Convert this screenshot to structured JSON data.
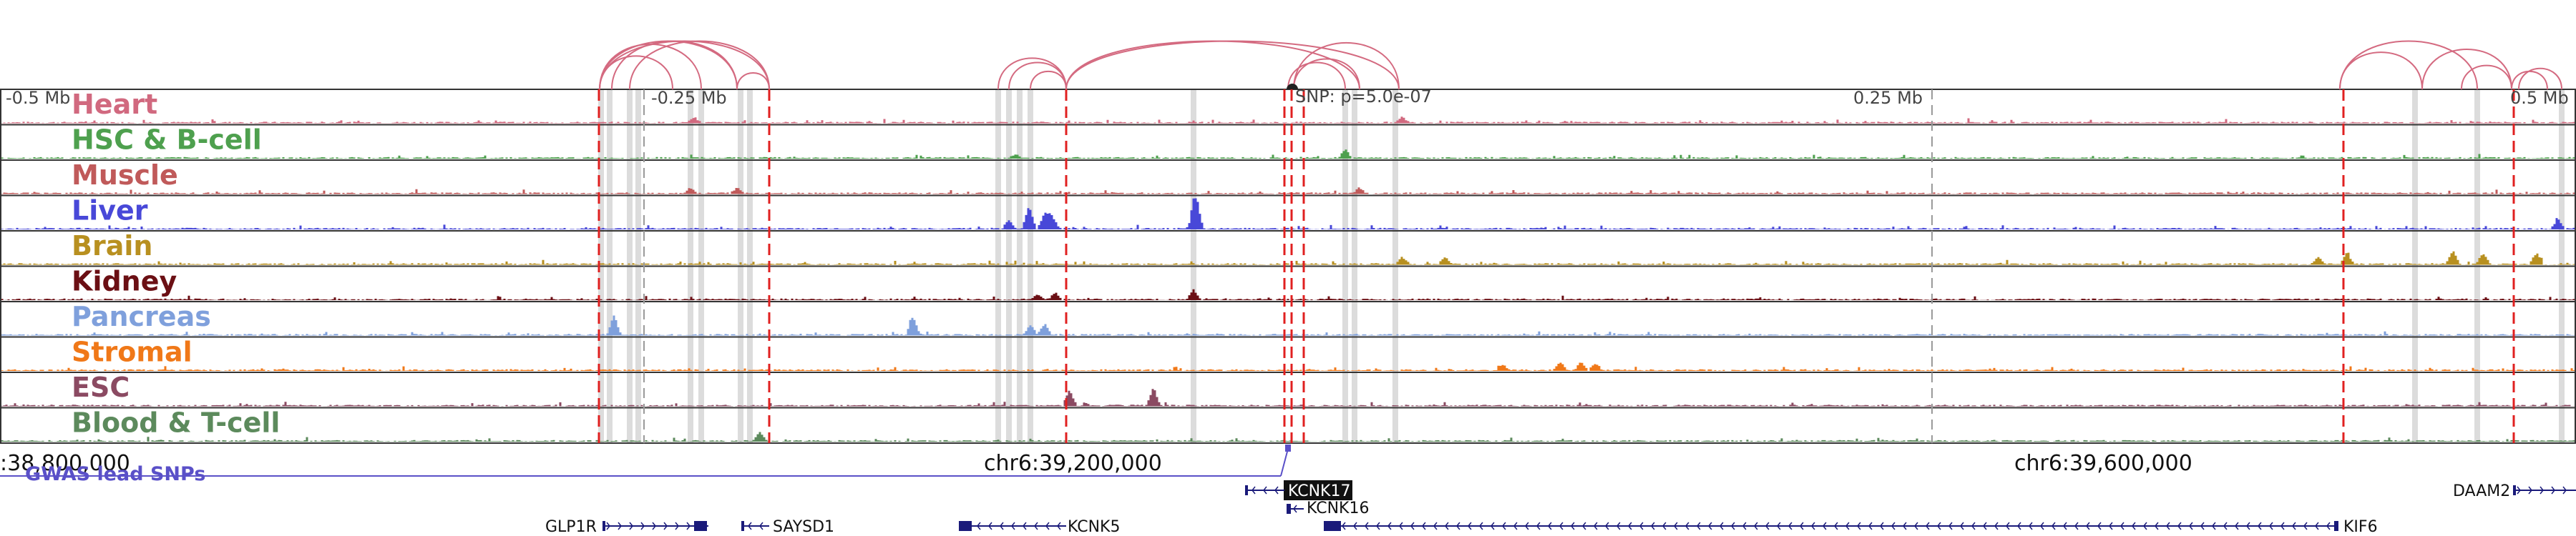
{
  "scale_labels": {
    "minus_half": "-0.5 Mb",
    "minus_quarter": "-0.25 Mb",
    "snp": "SNP: p=5.0e-07",
    "plus_quarter": "0.25 Mb",
    "plus_half": "0.5 Mb"
  },
  "tracks": [
    {
      "label": "Heart",
      "color": "#d1697f"
    },
    {
      "label": "HSC & B-cell",
      "color": "#4ea04e"
    },
    {
      "label": "Muscle",
      "color": "#c05a5a"
    },
    {
      "label": "Liver",
      "color": "#4848d8"
    },
    {
      "label": "Brain",
      "color": "#b89020"
    },
    {
      "label": "Kidney",
      "color": "#6b0f14"
    },
    {
      "label": "Pancreas",
      "color": "#7fa0dc"
    },
    {
      "label": "Stromal",
      "color": "#f07818"
    },
    {
      "label": "ESC",
      "color": "#8b4a62"
    },
    {
      "label": "Blood & T-cell",
      "color": "#5c8a5c"
    }
  ],
  "coordinates": {
    "left": ":38,800,000",
    "middle": "chr6:39,200,000",
    "right": "chr6:39,600,000"
  },
  "gwas_label": "GWAS lead SNPs",
  "genes": [
    {
      "name": "KCNK17",
      "highlighted": true
    },
    {
      "name": "KCNK16"
    },
    {
      "name": "GLP1R"
    },
    {
      "name": "SAYSD1"
    },
    {
      "name": "KCNK5"
    },
    {
      "name": "KIF6"
    },
    {
      "name": "DAAM2"
    }
  ],
  "colors": {
    "arc": "#d46a80",
    "highlight_line": "#e02020",
    "gwas": "#5a50c8",
    "gene": "#1a1a7a"
  }
}
